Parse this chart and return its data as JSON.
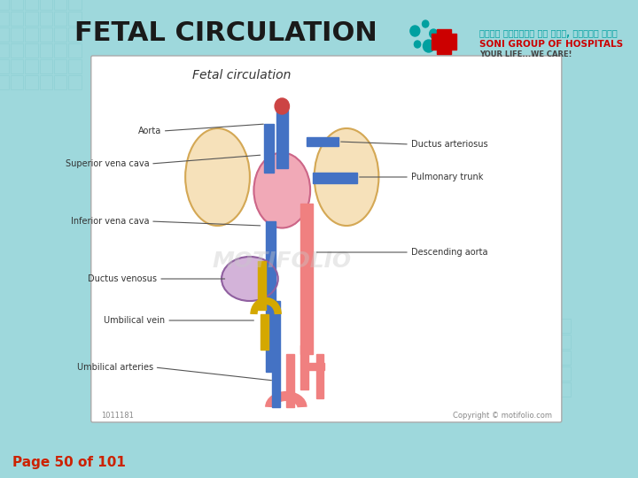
{
  "title": "FETAL CIRCULATION",
  "page_text": "Page 50 of 101",
  "bg_color": "#a8dde0",
  "slide_bg": "#b8e8ec",
  "title_color": "#1a1a1a",
  "page_color": "#cc2200",
  "diagram_title": "Fetal circulation",
  "labels_left": [
    "Aorta",
    "Superior vena cava",
    "Inferior vena cava",
    "Ductus venosus",
    "Umbilical vein",
    "Umbilical arteries"
  ],
  "labels_right": [
    "Ductus arteriosus",
    "Pulmonary trunk",
    "Descending aorta"
  ],
  "copyright": "Copyright © motifolio.com",
  "watermark": "MOTIFOLIO",
  "box_bg": "#ffffff",
  "diagram_id": "1011181"
}
